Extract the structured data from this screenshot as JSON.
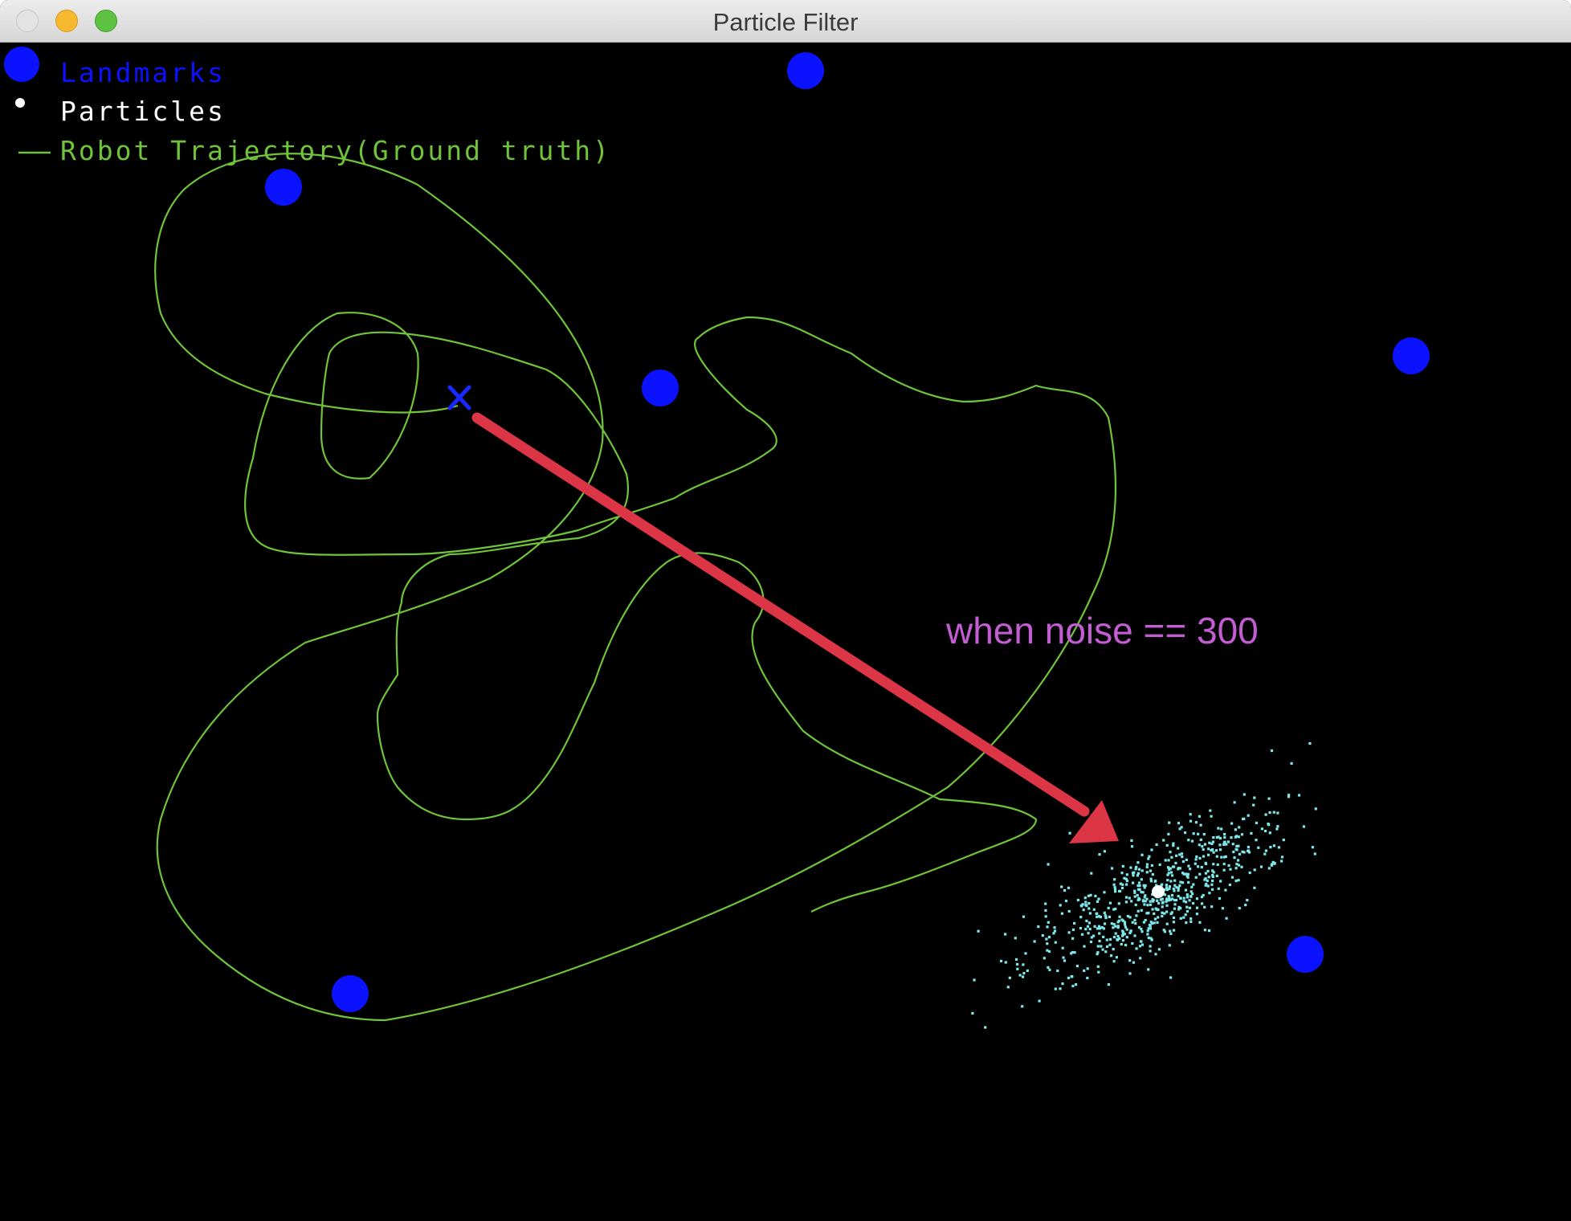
{
  "window": {
    "title": "Particle Filter"
  },
  "legend": {
    "landmarks_label": "Landmarks",
    "particles_label": "Particles",
    "trajectory_label": "Robot Trajectory(Ground truth)"
  },
  "annotation": {
    "text": "when noise == 300"
  },
  "colors": {
    "background": "#000000",
    "landmark": "#0a12ff",
    "particles": "#7ee8ea",
    "trajectory": "#6fc43a",
    "arrow": "#dc3545",
    "annotation": "#c45cd4",
    "start_marker": "#1a28ff"
  },
  "icons": {
    "close": "close-icon",
    "minimize": "minimize-icon",
    "zoom": "zoom-icon",
    "start_marker": "x-marker-icon"
  }
}
